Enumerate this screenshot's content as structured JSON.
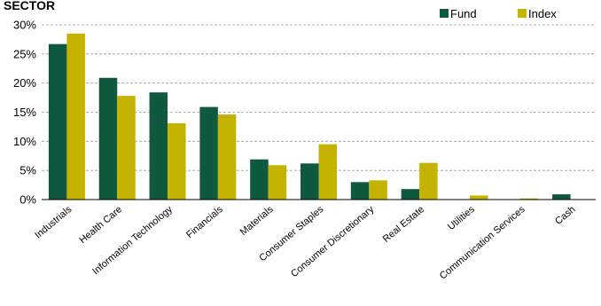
{
  "chart_data": {
    "type": "bar",
    "title": "SECTOR",
    "categories": [
      "Industrials",
      "Health Care",
      "Information Technology",
      "Financials",
      "Materials",
      "Consumer Staples",
      "Consumer Discretionary",
      "Real Estate",
      "Utilities",
      "Communication Services",
      "Cash"
    ],
    "series": [
      {
        "name": "Fund",
        "color": "#0f5a3e",
        "values": [
          26.7,
          20.9,
          18.4,
          15.9,
          6.9,
          6.2,
          3.0,
          1.8,
          0.0,
          0.0,
          0.9
        ]
      },
      {
        "name": "Index",
        "color": "#c4b300",
        "values": [
          28.5,
          17.8,
          13.1,
          14.6,
          5.9,
          9.5,
          3.3,
          6.3,
          0.7,
          0.2,
          0.0
        ]
      }
    ],
    "ylim": [
      0,
      30
    ],
    "yticks": [
      "0%",
      "5%",
      "10%",
      "15%",
      "20%",
      "25%",
      "30%"
    ],
    "ytick_values": [
      0,
      5,
      10,
      15,
      20,
      25,
      30
    ],
    "grid": true,
    "legend_position": "top-right"
  }
}
